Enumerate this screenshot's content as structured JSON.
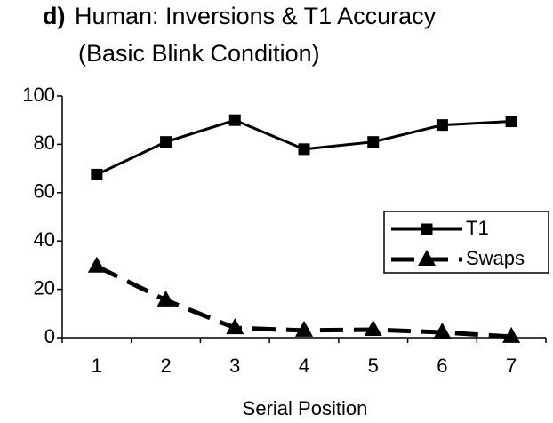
{
  "chart_data": {
    "type": "line",
    "panel_label": "d)",
    "title": "Human: Inversions & T1 Accuracy",
    "subtitle": "(Basic Blink Condition)",
    "x_label": "Serial Position",
    "categories": [
      "1",
      "2",
      "3",
      "4",
      "5",
      "6",
      "7"
    ],
    "series": [
      {
        "name": "T1",
        "color": "#000000",
        "marker": "square",
        "dash": false,
        "values": [
          67.5,
          81,
          90,
          78,
          81,
          88,
          89.5
        ]
      },
      {
        "name": "Swaps",
        "color": "#000000",
        "marker": "triangle",
        "dash": true,
        "values": [
          29.5,
          15.5,
          4,
          3,
          3.3,
          2.2,
          0.4
        ]
      }
    ],
    "ylim": [
      0,
      100
    ],
    "yticks": [
      0,
      20,
      40,
      60,
      80,
      100
    ],
    "grid": false,
    "legend": "right"
  }
}
